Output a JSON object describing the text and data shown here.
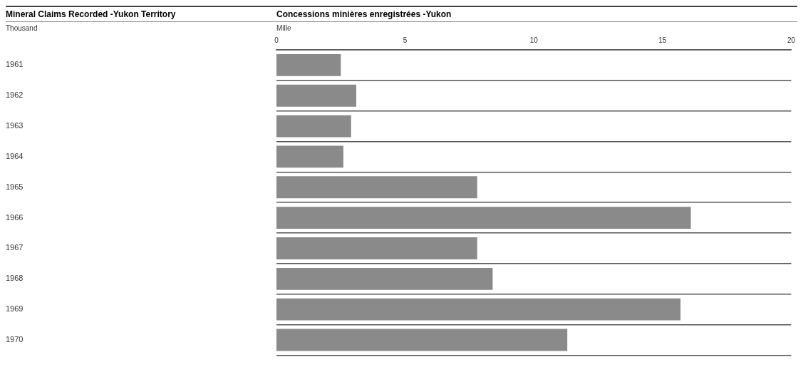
{
  "chart_data": {
    "type": "bar",
    "orientation": "horizontal",
    "title": "Mineral Claims Recorded -Yukon Territory",
    "subtitle": "Concessions minières enregistrées -Yukon",
    "annotations": [
      "Thousand",
      "Mille"
    ],
    "categories": [
      "1961",
      "1962",
      "1963",
      "1964",
      "1965",
      "1966",
      "1967",
      "1968",
      "1969",
      "1970"
    ],
    "series": [
      {
        "axis": "x2",
        "color": "#8a8a8a",
        "values": [
          2.5,
          3.1,
          2.9,
          2.6,
          7.8,
          16.1,
          7.8,
          8.4,
          15.7,
          11.3
        ]
      }
    ],
    "x2lim": [
      0,
      20
    ],
    "x2ticks": [
      0,
      5,
      10,
      15,
      20
    ],
    "grid": "y",
    "legend": false
  }
}
